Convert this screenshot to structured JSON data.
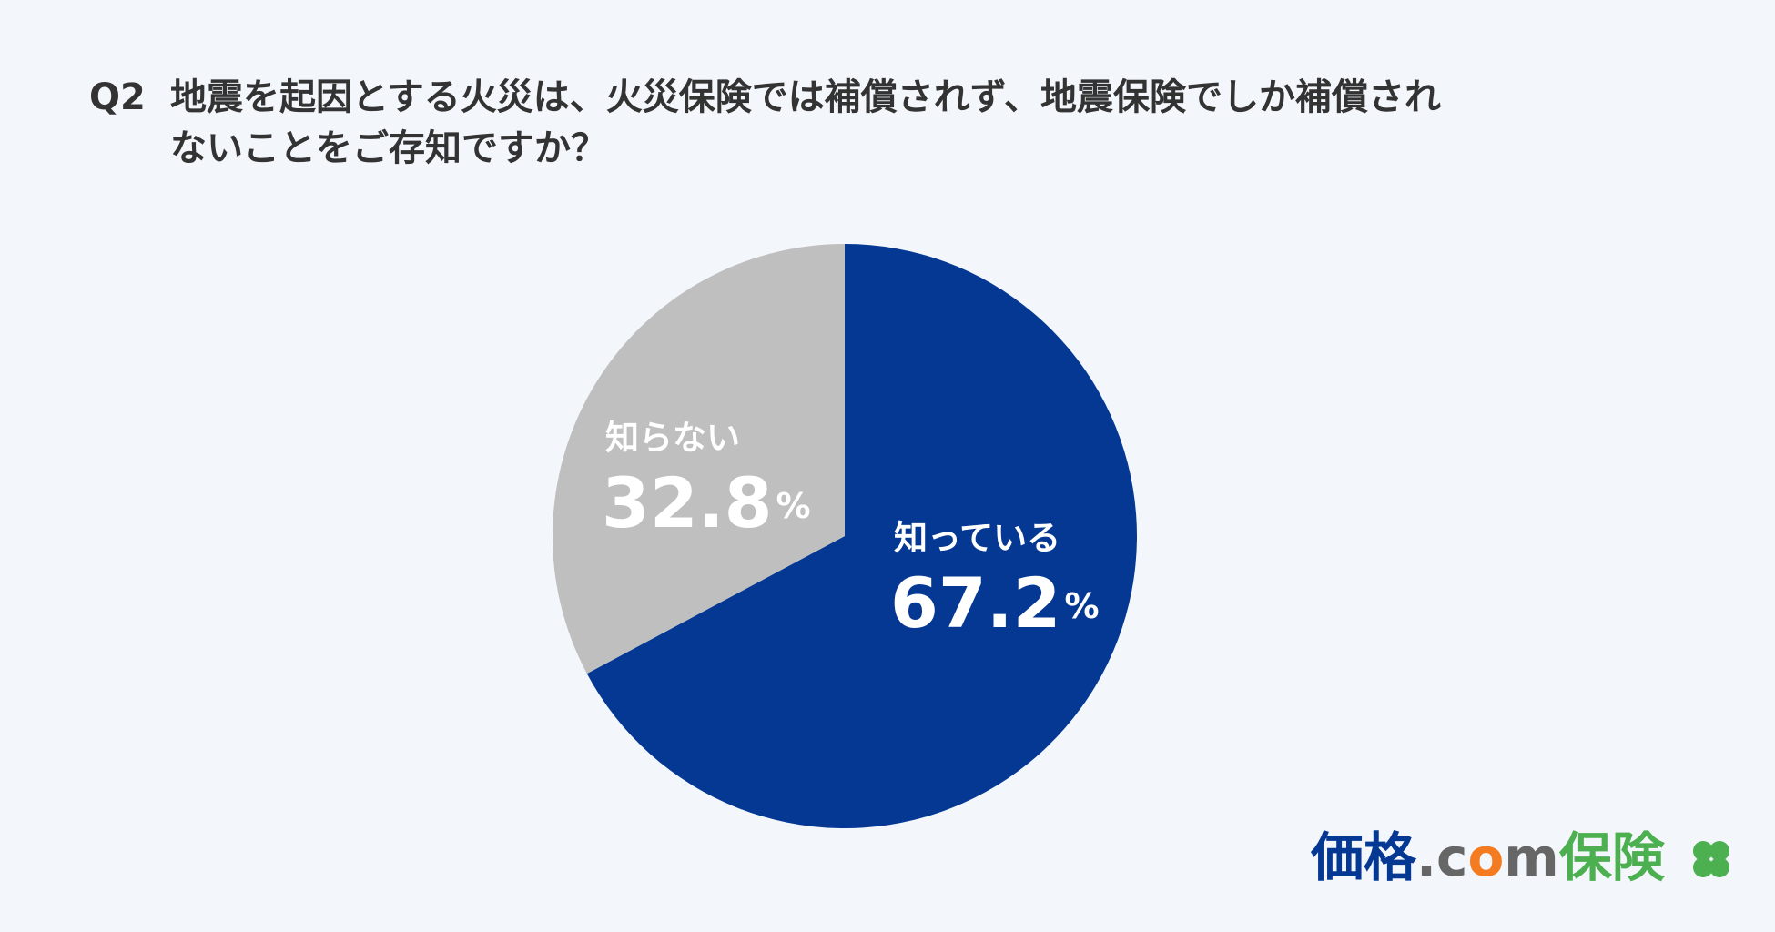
{
  "chart_data": {
    "type": "pie",
    "title": "Q2",
    "question": [
      "地震を起因とする火災は、火災保険では補償されず、地震保険でしか補償され",
      "ないことをご存知ですか？"
    ],
    "categories": [
      "知っている",
      "知らない"
    ],
    "values": [
      67.2,
      32.8
    ],
    "value_unit": "%",
    "colors": [
      "#043893",
      "#bfbfbf"
    ],
    "logo": [
      "価格",
      ".c",
      "o",
      "m",
      "保険"
    ]
  }
}
